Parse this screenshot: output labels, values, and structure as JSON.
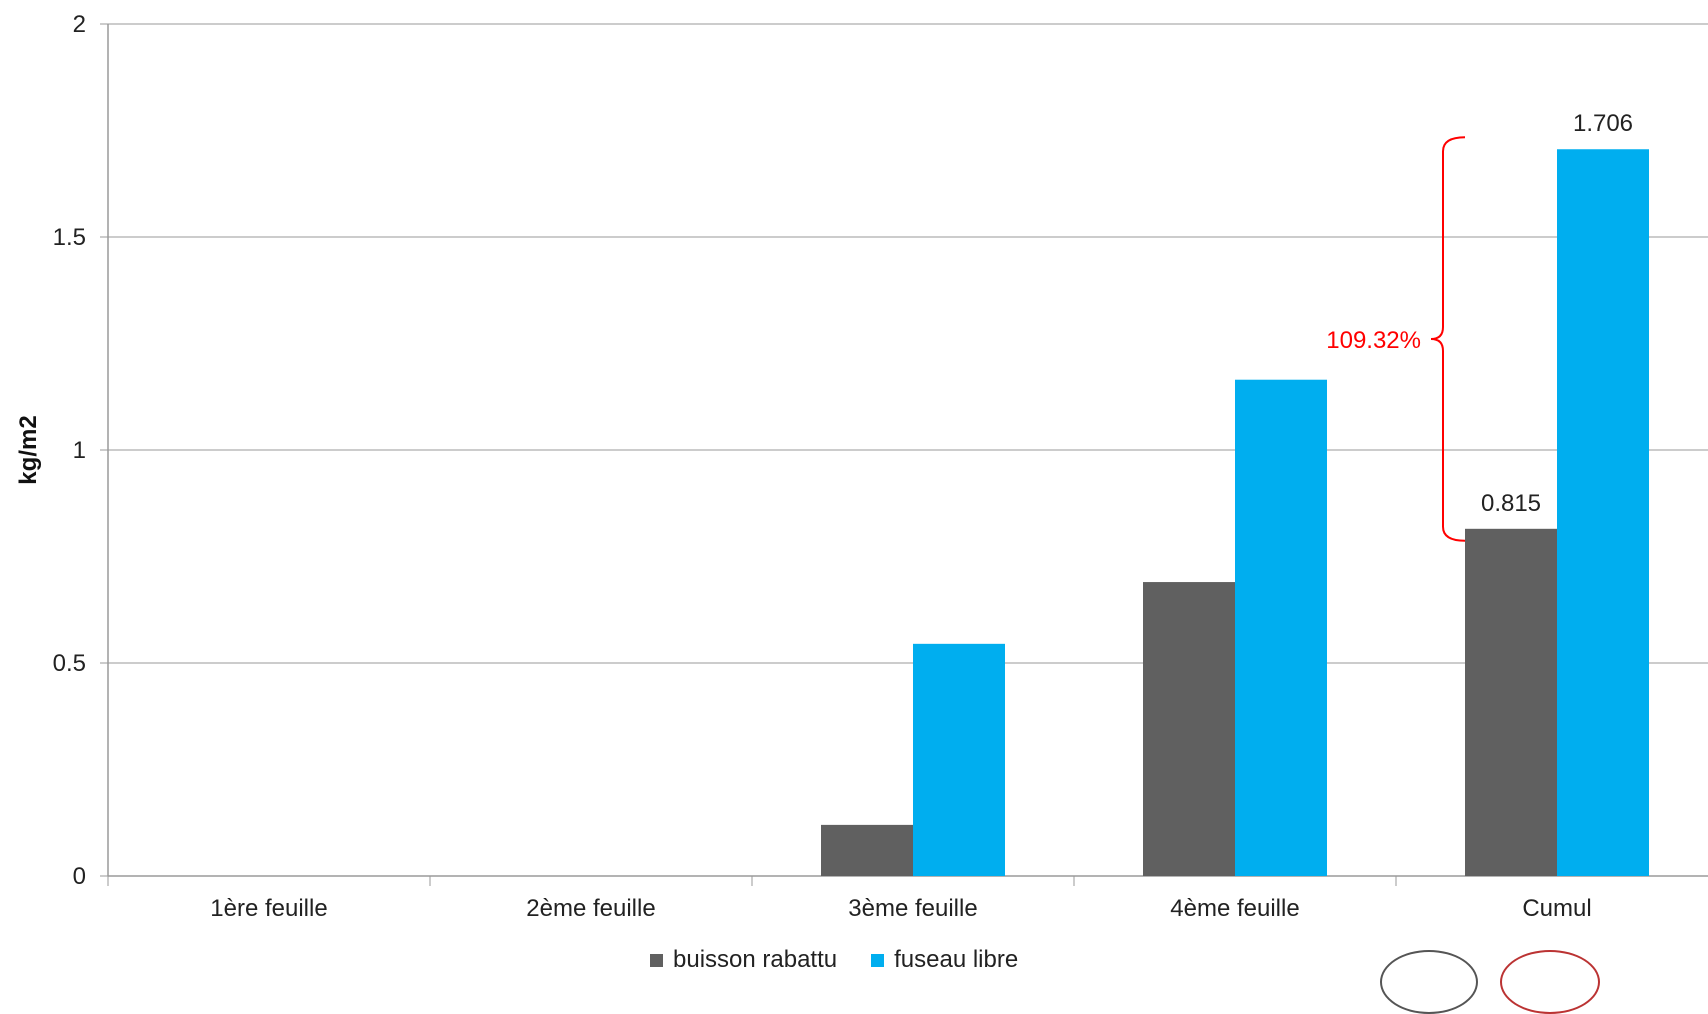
{
  "chart_data": {
    "type": "bar",
    "title": "",
    "xlabel": "",
    "ylabel": "kg/m2",
    "ylim": [
      0,
      2
    ],
    "yticks": [
      "0",
      "0.5",
      "1",
      "1.5",
      "2"
    ],
    "grid": true,
    "legend_position": "bottom",
    "categories": [
      "1ère feuille",
      "2ème feuille",
      "3ème feuille",
      "4ème feuille",
      "Cumul"
    ],
    "series": [
      {
        "name": "buisson rabattu",
        "color": "#606060",
        "values": [
          0,
          0,
          0.12,
          0.69,
          0.815
        ]
      },
      {
        "name": "fuseau libre",
        "color": "#00AEEF",
        "values": [
          0,
          0,
          0.545,
          1.165,
          1.706
        ]
      }
    ],
    "data_labels": [
      {
        "series": 0,
        "category": 4,
        "text": "0.815"
      },
      {
        "series": 1,
        "category": 4,
        "text": "1.706"
      }
    ],
    "annotation": {
      "text": "109.32%",
      "color": "#FF0000",
      "category": 4,
      "from": 0.815,
      "to": 1.706
    }
  }
}
